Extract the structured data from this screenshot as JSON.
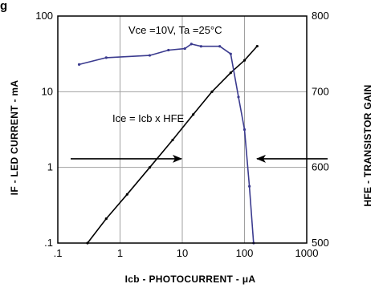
{
  "corner_text": "g",
  "colors": {
    "gain_curve": "#3b3b8f",
    "ice_curve": "#000000",
    "grid": "#a0a0a0",
    "axes": "#000000"
  },
  "chart_data": {
    "type": "line",
    "xscale": "log",
    "xlim": [
      0.1,
      1000
    ],
    "x_ticks": [
      0.1,
      1,
      10,
      100,
      1000
    ],
    "x_tick_labels": [
      ".1",
      "1",
      "10",
      "100",
      "1000"
    ],
    "xlabel": "Icb -  PHOTOCURRENT  -  μA",
    "left_axis": {
      "label": "IF - LED  CURRENT - mA",
      "scale": "log",
      "ylim": [
        0.1,
        100
      ],
      "ticks": [
        0.1,
        1,
        10,
        100
      ],
      "tick_labels": [
        ".1",
        "1",
        "10",
        "100"
      ]
    },
    "right_axis": {
      "label": "HFE - TRANSISTOR GAIN",
      "scale": "linear",
      "ylim": [
        500,
        800
      ],
      "ticks": [
        500,
        600,
        700,
        800
      ],
      "tick_labels": [
        "500",
        "600",
        "700",
        "800"
      ]
    },
    "grid": true,
    "series": [
      {
        "axis": "left",
        "x": [
          0.3,
          0.6,
          1.3,
          3,
          7,
          15,
          30,
          60,
          100,
          160
        ],
        "y": [
          0.1,
          0.21,
          0.44,
          1.0,
          2.3,
          5.0,
          10,
          17.8,
          26,
          40
        ]
      },
      {
        "axis": "right",
        "x": [
          0.22,
          0.6,
          3,
          6,
          11,
          14,
          20,
          40,
          60,
          80,
          100,
          120,
          140
        ],
        "y": [
          736,
          745,
          748,
          755,
          757,
          763,
          760,
          760,
          750,
          693,
          650,
          575,
          500
        ]
      }
    ],
    "annotations": [
      {
        "text": "Vce =10V, Ta =25°C"
      },
      {
        "text": "Ice = Icb x HFE"
      }
    ],
    "arrows": [
      {
        "target_series": "left",
        "direction": "right"
      },
      {
        "target_series": "right",
        "direction": "left"
      }
    ]
  }
}
